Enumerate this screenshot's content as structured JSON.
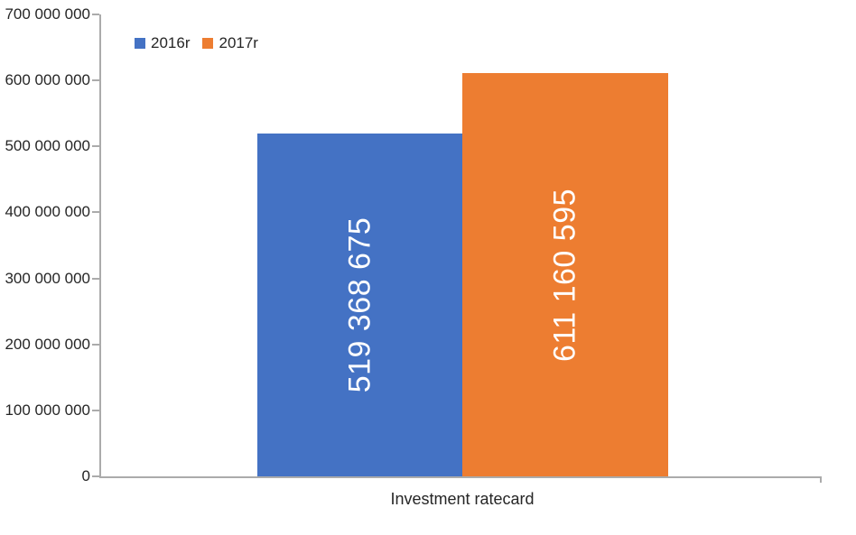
{
  "chart_data": {
    "type": "bar",
    "title": "",
    "categories": [
      "Investment ratecard"
    ],
    "series": [
      {
        "name": "2016r",
        "color": "#4472C4",
        "values": [
          519368675
        ],
        "data_labels": [
          "519 368 675"
        ]
      },
      {
        "name": "2017r",
        "color": "#ED7D31",
        "values": [
          611160595
        ],
        "data_labels": [
          "611 160 595"
        ]
      }
    ],
    "ylim": [
      0,
      700000000
    ],
    "y_tick_labels": [
      "0",
      "100 000 000",
      "200 000 000",
      "300 000 000",
      "400 000 000",
      "500 000 000",
      "600 000 000",
      "700 000 000"
    ],
    "grid": false,
    "legend_position": "top",
    "data_label_color": "#FFFFFF",
    "axis_line_color": "#ABABAB",
    "label_text_color": "#262626",
    "background": "#FFFFFF"
  }
}
